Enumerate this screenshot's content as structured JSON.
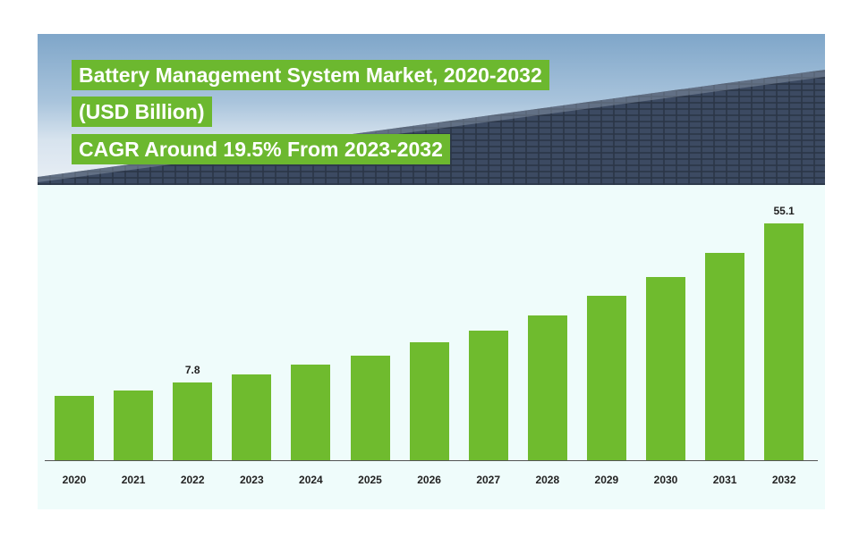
{
  "title_lines": [
    "Battery Management System Market, 2020-2032",
    "(USD Billion)",
    "CAGR Around 19.5% From 2023-2032"
  ],
  "colors": {
    "bar": "#6fbb2e",
    "title_bg": "#6cb82f"
  },
  "chart_data": {
    "type": "bar",
    "title": "Battery Management System Market, 2020-2032 (USD Billion)",
    "subtitle": "CAGR Around 19.5% From 2023-2032",
    "categories": [
      "2020",
      "2021",
      "2022",
      "2023",
      "2024",
      "2025",
      "2026",
      "2027",
      "2028",
      "2029",
      "2030",
      "2031",
      "2032"
    ],
    "values": [
      3.8,
      5.4,
      7.8,
      10.2,
      13.1,
      15.8,
      19.8,
      23.2,
      27.7,
      33.6,
      39.2,
      46.3,
      55.1
    ],
    "data_labels": {
      "2022": "7.8",
      "2032": "55.1"
    },
    "xlabel": "",
    "ylabel": "",
    "ylim": [
      -15.3,
      55.1
    ],
    "grid": false,
    "legend": "none"
  }
}
